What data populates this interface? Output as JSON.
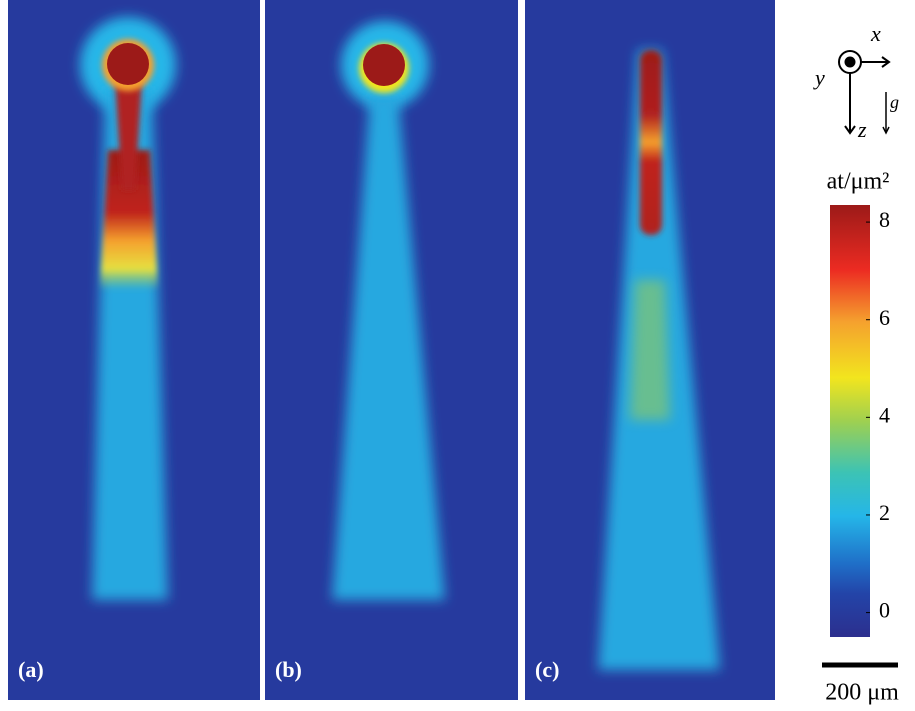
{
  "panels": [
    {
      "label": "(a)"
    },
    {
      "label": "(b)"
    },
    {
      "label": "(c)"
    }
  ],
  "coordinate_axes": {
    "x": "x",
    "y": "y",
    "z": "z",
    "gravity": "g⃗"
  },
  "colorbar": {
    "title": "at/μm²",
    "lim": [
      -0.5,
      8.35
    ],
    "ticks": [
      0,
      2,
      4,
      6,
      8
    ]
  },
  "scale_bar": {
    "label": "200 μm"
  }
}
